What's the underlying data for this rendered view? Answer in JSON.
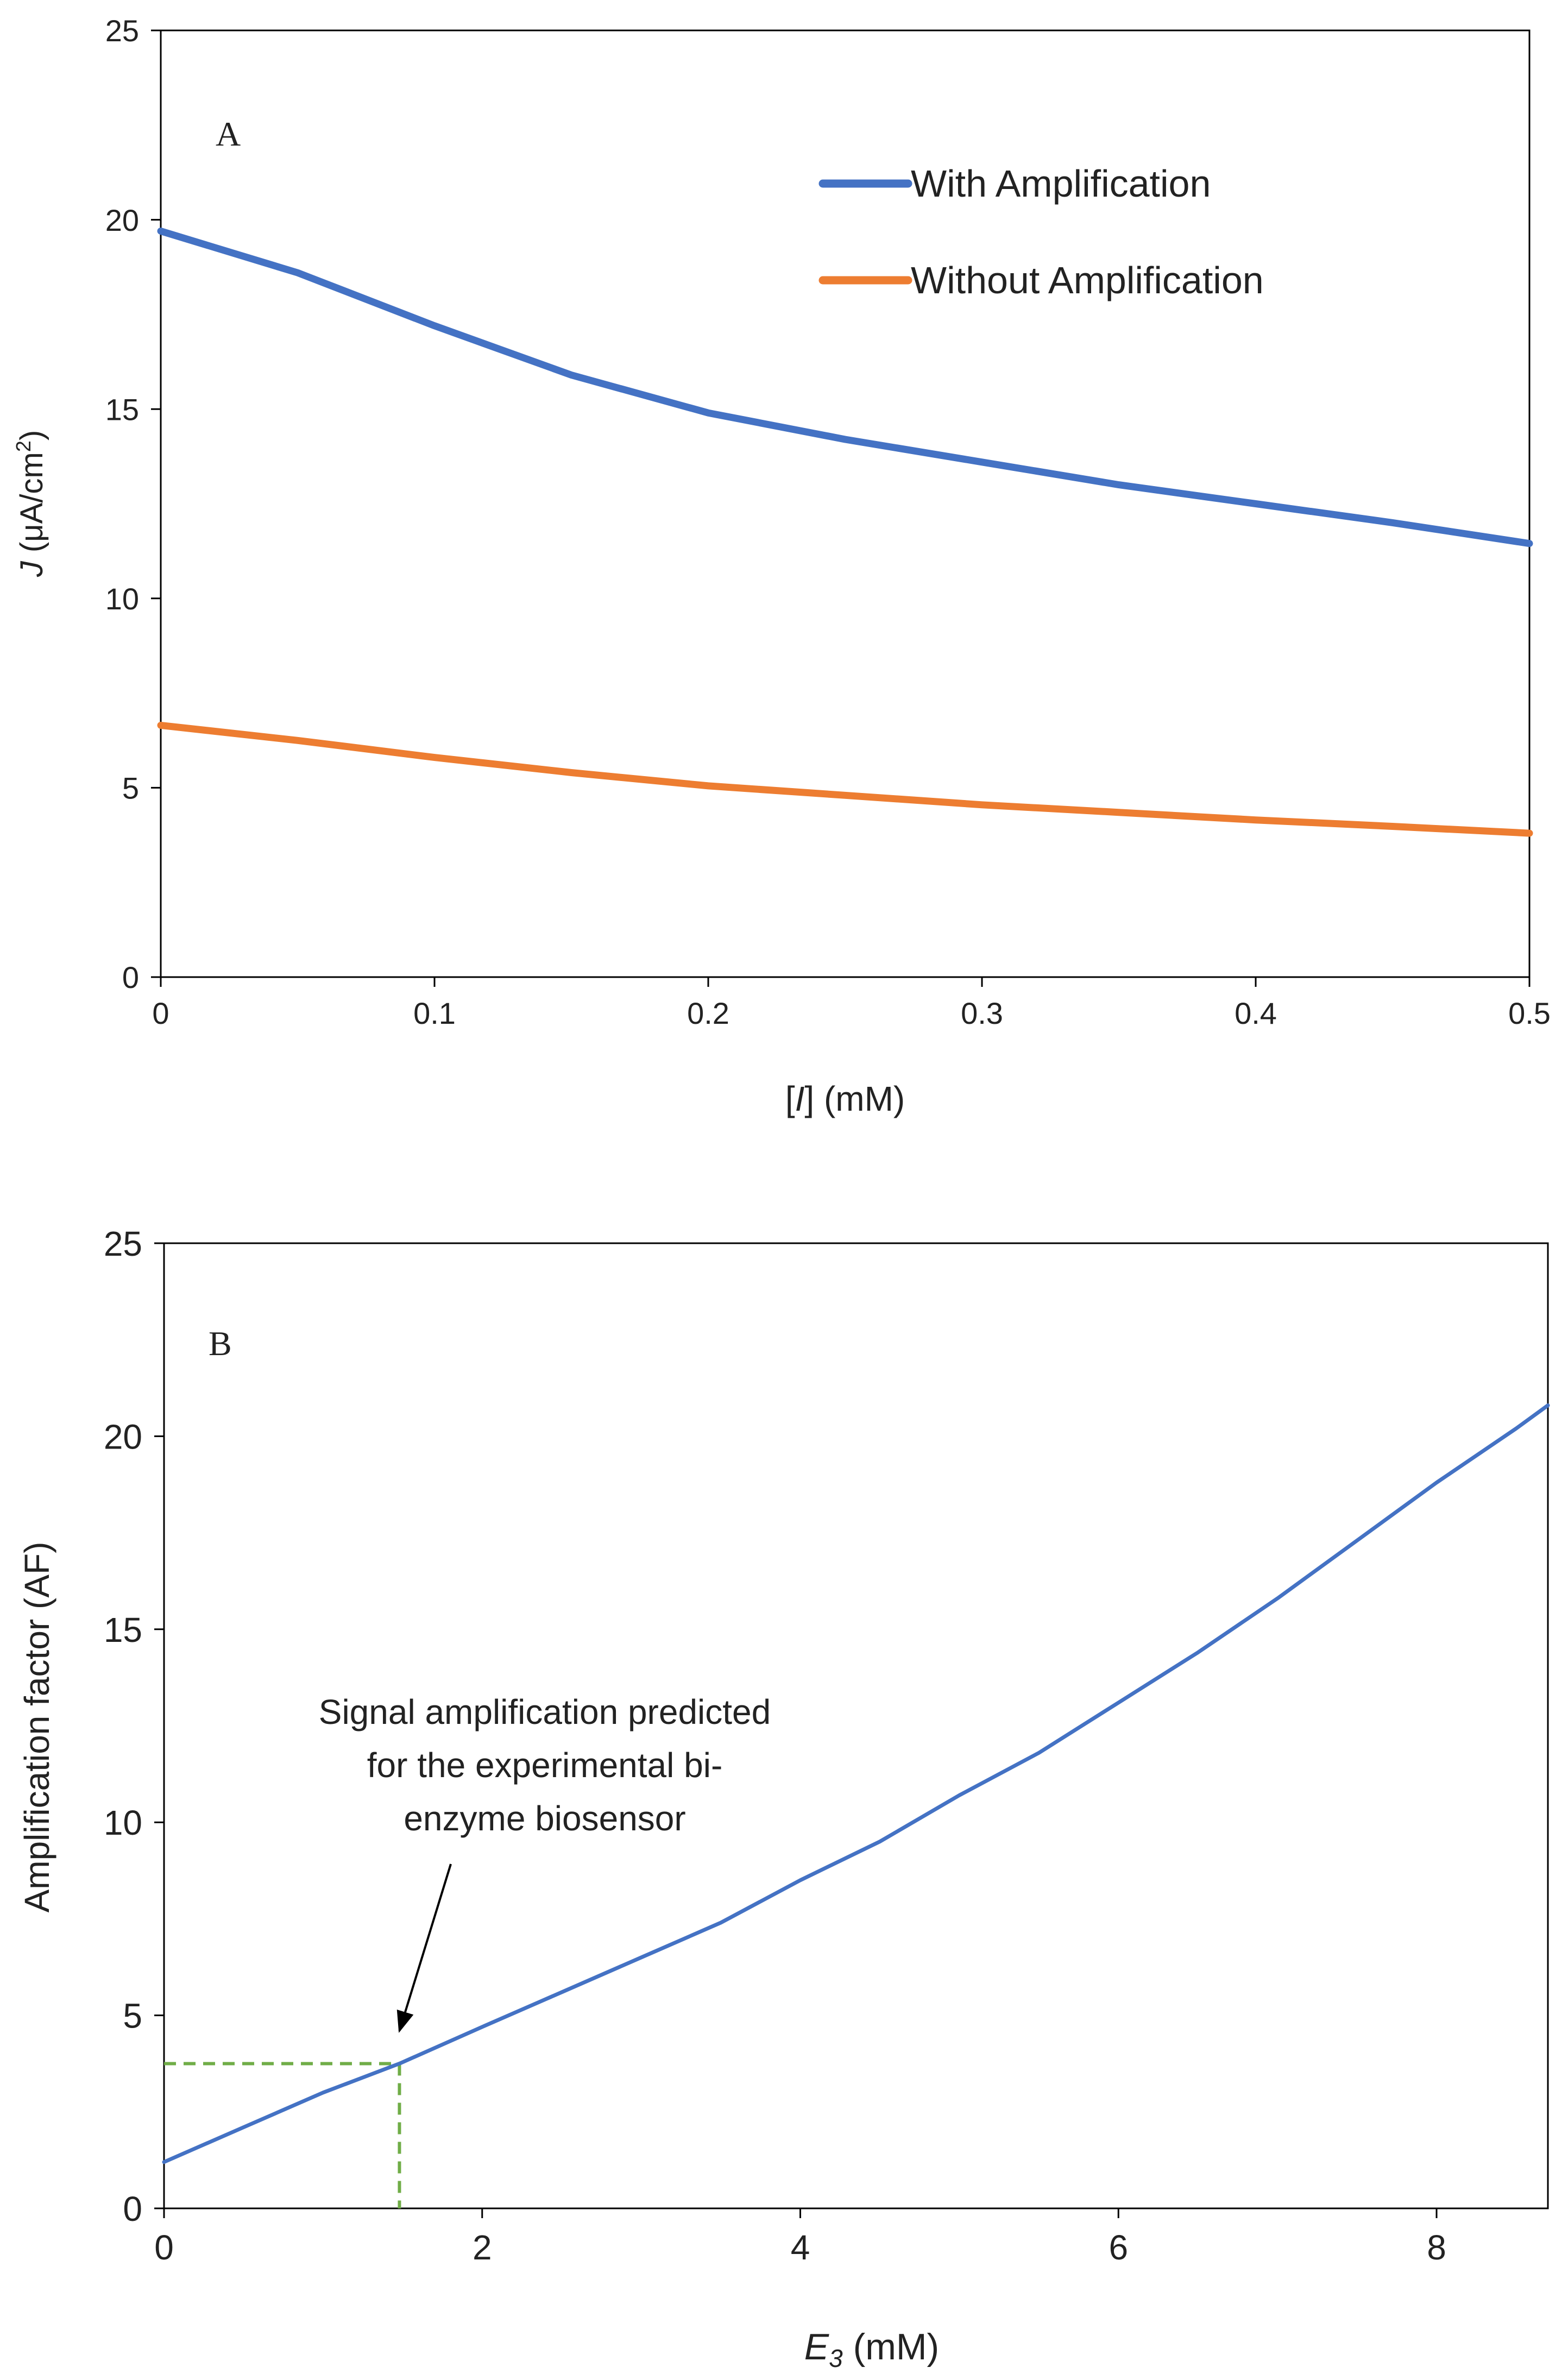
{
  "chart_data": [
    {
      "type": "line",
      "panel_label": "A",
      "xlabel": "[I] (mM)",
      "xlabel_parts": {
        "open": "[",
        "italic": "I",
        "close": "] (mM)"
      },
      "ylabel": "J (μA/cm²)",
      "ylabel_parts": {
        "italic": "J",
        "rest": " (μA/cm",
        "sup": "2",
        "close": ")"
      },
      "xlim": [
        0,
        0.5
      ],
      "ylim": [
        0,
        25
      ],
      "xticks": [
        0,
        0.1,
        0.2,
        0.3,
        0.4,
        0.5
      ],
      "xtick_labels": [
        "0",
        "0.1",
        "0.2",
        "0.3",
        "0.4",
        "0.5"
      ],
      "yticks": [
        0,
        5,
        10,
        15,
        20,
        25
      ],
      "ytick_labels": [
        "0",
        "5",
        "10",
        "15",
        "20",
        "25"
      ],
      "grid": false,
      "legend_position": "top-right",
      "series": [
        {
          "name": "With Amplification",
          "color": "#4472C4",
          "x": [
            0,
            0.05,
            0.1,
            0.15,
            0.2,
            0.25,
            0.3,
            0.35,
            0.4,
            0.45,
            0.5
          ],
          "y": [
            19.7,
            18.6,
            17.2,
            15.9,
            14.9,
            14.2,
            13.6,
            13.0,
            12.5,
            12.0,
            11.45
          ]
        },
        {
          "name": "Without Amplification",
          "color": "#ED7D31",
          "x": [
            0,
            0.05,
            0.1,
            0.15,
            0.2,
            0.25,
            0.3,
            0.35,
            0.4,
            0.45,
            0.5
          ],
          "y": [
            6.65,
            6.25,
            5.8,
            5.4,
            5.05,
            4.8,
            4.55,
            4.35,
            4.15,
            3.98,
            3.8
          ]
        }
      ]
    },
    {
      "type": "line",
      "panel_label": "B",
      "xlabel": "E3 (mM)",
      "xlabel_parts": {
        "italic": "E",
        "sub": "3",
        "rest": " (mM)"
      },
      "ylabel": "Amplification factor (AF)",
      "xlim": [
        0,
        8.7
      ],
      "ylim": [
        0,
        25
      ],
      "xticks": [
        0,
        2,
        4,
        6,
        8
      ],
      "xtick_labels": [
        "0",
        "2",
        "4",
        "6",
        "8"
      ],
      "yticks": [
        0,
        5,
        10,
        15,
        20,
        25
      ],
      "ytick_labels": [
        "0",
        "5",
        "10",
        "15",
        "20",
        "25"
      ],
      "grid": false,
      "series": [
        {
          "name": "Amplification factor",
          "color": "#4472C4",
          "x": [
            0,
            0.5,
            1.0,
            1.48,
            2.0,
            2.5,
            3.0,
            3.5,
            4.0,
            4.5,
            5.0,
            5.5,
            6.0,
            6.5,
            7.0,
            7.5,
            8.0,
            8.5,
            8.7
          ],
          "y": [
            1.2,
            2.1,
            3.0,
            3.75,
            4.7,
            5.6,
            6.5,
            7.4,
            8.5,
            9.5,
            10.7,
            11.8,
            13.1,
            14.4,
            15.8,
            17.3,
            18.8,
            20.2,
            20.8
          ]
        }
      ],
      "reference": {
        "x": 1.48,
        "y": 3.75,
        "color": "#70AD47",
        "style": "dashed"
      },
      "annotation": {
        "lines": [
          "Signal amplification predicted",
          "for the experimental bi-",
          "enzyme biosensor"
        ],
        "arrow_to": {
          "x": 1.48,
          "y": 4.6
        }
      }
    }
  ]
}
